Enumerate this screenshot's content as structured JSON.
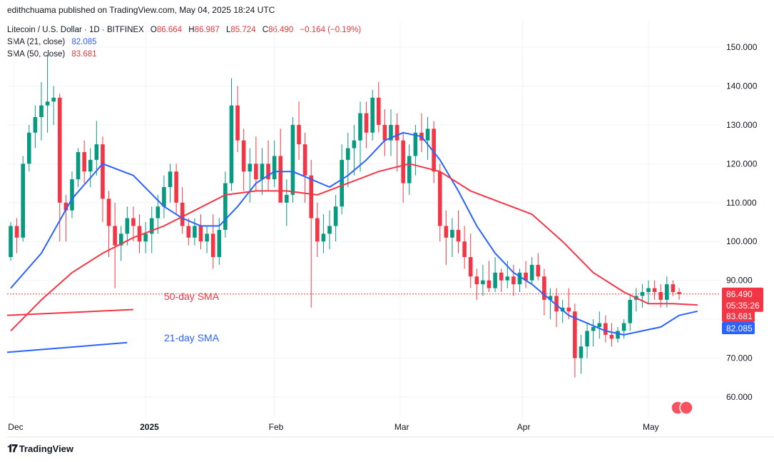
{
  "header": {
    "published_by": "edithchuama published on TradingView.com, May 04, 2025 18:24 UTC"
  },
  "legend": {
    "symbol": "Litecoin / U.S. Dollar · 1D · BITFINEX",
    "open_label": "O",
    "open": "86.664",
    "high_label": "H",
    "high": "86.987",
    "low_label": "L",
    "low": "85.724",
    "close_label": "C",
    "close": "86.490",
    "change": "−0.164 (−0.19%)",
    "sma21_label": "SMA (21, close)",
    "sma21_value": "82.085",
    "sma50_label": "SMA (50, close)",
    "sma50_value": "83.681"
  },
  "footer": {
    "logo_text": "TradingView"
  },
  "chart_data": {
    "type": "line",
    "title": "Litecoin / U.S. Dollar · 1D · BITFINEX",
    "y_axis_side": "right",
    "ylim": [
      55,
      157
    ],
    "y_ticks": [
      "150.000",
      "140.000",
      "130.000",
      "120.000",
      "110.000",
      "100.000",
      "90.000",
      "80.000",
      "70.000",
      "60.000"
    ],
    "x_ticks": [
      "Dec",
      "2025",
      "Feb",
      "Mar",
      "Apr",
      "May"
    ],
    "price_labels": [
      {
        "text": "86.490",
        "sub": "05:35:26",
        "value": 86.49,
        "color": "#f23645"
      },
      {
        "text": "83.681",
        "value": 83.681,
        "color": "#f23645"
      },
      {
        "text": "82.085",
        "value": 82.085,
        "color": "#2962ff"
      }
    ],
    "annotations": [
      {
        "text": "50-day SMA",
        "color": "#f23645"
      },
      {
        "text": "21-day SMA",
        "color": "#2962ff"
      }
    ],
    "colors": {
      "up": "#089981",
      "down": "#f23645",
      "sma21": "#2962ff",
      "sma50": "#f23645",
      "grid": "#f0f3fa"
    },
    "candles_ohlc": [
      [
        96,
        105,
        95,
        104
      ],
      [
        104,
        106,
        97,
        101
      ],
      [
        101,
        122,
        100,
        120
      ],
      [
        120,
        130,
        118,
        128
      ],
      [
        128,
        135,
        124,
        132
      ],
      [
        132,
        141,
        126,
        135
      ],
      [
        135,
        148,
        128,
        136
      ],
      [
        136,
        140,
        130,
        137
      ],
      [
        137,
        138,
        100,
        110
      ],
      [
        110,
        112,
        100,
        108
      ],
      [
        108,
        118,
        106,
        116
      ],
      [
        116,
        124,
        114,
        123
      ],
      [
        123,
        126,
        115,
        118
      ],
      [
        118,
        124,
        114,
        121
      ],
      [
        121,
        131,
        117,
        125
      ],
      [
        125,
        127,
        105,
        111
      ],
      [
        111,
        113,
        96,
        104
      ],
      [
        104,
        110,
        88,
        99
      ],
      [
        99,
        104,
        95,
        102
      ],
      [
        102,
        109,
        99,
        106
      ],
      [
        106,
        109,
        100,
        104
      ],
      [
        104,
        107,
        97,
        100
      ],
      [
        100,
        105,
        97,
        102
      ],
      [
        102,
        109,
        97,
        106
      ],
      [
        106,
        112,
        102,
        109
      ],
      [
        109,
        117,
        106,
        114
      ],
      [
        114,
        120,
        110,
        118
      ],
      [
        118,
        120,
        107,
        110
      ],
      [
        110,
        114,
        102,
        104
      ],
      [
        104,
        106,
        99,
        101
      ],
      [
        101,
        106,
        99,
        104
      ],
      [
        104,
        107,
        98,
        100
      ],
      [
        100,
        104,
        97,
        102
      ],
      [
        102,
        107,
        93,
        96
      ],
      [
        96,
        106,
        94,
        103
      ],
      [
        103,
        118,
        101,
        115
      ],
      [
        115,
        142,
        113,
        135
      ],
      [
        135,
        140,
        123,
        126
      ],
      [
        126,
        129,
        113,
        118
      ],
      [
        118,
        124,
        110,
        120
      ],
      [
        120,
        127,
        113,
        116
      ],
      [
        116,
        124,
        112,
        120
      ],
      [
        120,
        126,
        113,
        116
      ],
      [
        116,
        126,
        114,
        122
      ],
      [
        122,
        129,
        115,
        110
      ],
      [
        110,
        116,
        104,
        112
      ],
      [
        112,
        132,
        110,
        130
      ],
      [
        130,
        136,
        121,
        125
      ],
      [
        125,
        128,
        110,
        117
      ],
      [
        117,
        121,
        83,
        106
      ],
      [
        106,
        110,
        96,
        100
      ],
      [
        100,
        107,
        97,
        102
      ],
      [
        102,
        108,
        98,
        104
      ],
      [
        104,
        112,
        100,
        109
      ],
      [
        109,
        125,
        107,
        121
      ],
      [
        121,
        128,
        114,
        124
      ],
      [
        124,
        130,
        117,
        126
      ],
      [
        126,
        136,
        118,
        133
      ],
      [
        133,
        136,
        124,
        128
      ],
      [
        128,
        139,
        126,
        137
      ],
      [
        137,
        141,
        128,
        130
      ],
      [
        130,
        134,
        122,
        126
      ],
      [
        126,
        134,
        122,
        130
      ],
      [
        130,
        133,
        118,
        126
      ],
      [
        126,
        128,
        110,
        115
      ],
      [
        115,
        125,
        112,
        122
      ],
      [
        122,
        130,
        117,
        128
      ],
      [
        128,
        133,
        123,
        126
      ],
      [
        126,
        132,
        121,
        129
      ],
      [
        129,
        131,
        115,
        118
      ],
      [
        118,
        120,
        100,
        104
      ],
      [
        104,
        108,
        94,
        101
      ],
      [
        101,
        106,
        96,
        103
      ],
      [
        103,
        108,
        97,
        100
      ],
      [
        100,
        104,
        93,
        96
      ],
      [
        96,
        102,
        88,
        91
      ],
      [
        91,
        93,
        85,
        89
      ],
      [
        89,
        94,
        86,
        90
      ],
      [
        90,
        95,
        87,
        88
      ],
      [
        88,
        96,
        87,
        92
      ],
      [
        92,
        93,
        87,
        90
      ],
      [
        90,
        95,
        88,
        91
      ],
      [
        91,
        94,
        86,
        89
      ],
      [
        89,
        93,
        87,
        92
      ],
      [
        92,
        95,
        88,
        90
      ],
      [
        90,
        96,
        89,
        94
      ],
      [
        94,
        97,
        90,
        91
      ],
      [
        91,
        93,
        81,
        85
      ],
      [
        85,
        88,
        80,
        86
      ],
      [
        86,
        88,
        78,
        82
      ],
      [
        82,
        85,
        79,
        83
      ],
      [
        83,
        88,
        80,
        82
      ],
      [
        82,
        84,
        65,
        70
      ],
      [
        70,
        76,
        66,
        73
      ],
      [
        73,
        79,
        70,
        77
      ],
      [
        77,
        80,
        73,
        78
      ],
      [
        78,
        82,
        75,
        79
      ],
      [
        79,
        81,
        74,
        76
      ],
      [
        76,
        79,
        73,
        75
      ],
      [
        75,
        78,
        74,
        77
      ],
      [
        77,
        80,
        75,
        79
      ],
      [
        79,
        86,
        77,
        85
      ],
      [
        85,
        88,
        82,
        86
      ],
      [
        86,
        89,
        83,
        87
      ],
      [
        87,
        90,
        84,
        88
      ],
      [
        88,
        90,
        85,
        87
      ],
      [
        87,
        89,
        83,
        85
      ],
      [
        85,
        91,
        83,
        89
      ],
      [
        89,
        90,
        86,
        87
      ],
      [
        87,
        88,
        85,
        86.49
      ]
    ],
    "sma21": [
      [
        0,
        88
      ],
      [
        5,
        97
      ],
      [
        10,
        111
      ],
      [
        15,
        120
      ],
      [
        20,
        117
      ],
      [
        25,
        109
      ],
      [
        28,
        106
      ],
      [
        31,
        104
      ],
      [
        34,
        104
      ],
      [
        37,
        109
      ],
      [
        40,
        115
      ],
      [
        43,
        118
      ],
      [
        46,
        118
      ],
      [
        49,
        116
      ],
      [
        52,
        114
      ],
      [
        55,
        117
      ],
      [
        58,
        121
      ],
      [
        61,
        126
      ],
      [
        64,
        128
      ],
      [
        67,
        127
      ],
      [
        70,
        121
      ],
      [
        73,
        113
      ],
      [
        76,
        104
      ],
      [
        79,
        97
      ],
      [
        82,
        92
      ],
      [
        85,
        89
      ],
      [
        88,
        85
      ],
      [
        91,
        81
      ],
      [
        94,
        79
      ],
      [
        97,
        77
      ],
      [
        100,
        76
      ],
      [
        103,
        77
      ],
      [
        106,
        78
      ],
      [
        109,
        81
      ],
      [
        112,
        82.085
      ]
    ],
    "sma50": [
      [
        0,
        77
      ],
      [
        5,
        85
      ],
      [
        10,
        92
      ],
      [
        15,
        97
      ],
      [
        20,
        101
      ],
      [
        25,
        104
      ],
      [
        30,
        108
      ],
      [
        35,
        112
      ],
      [
        40,
        113
      ],
      [
        45,
        113
      ],
      [
        50,
        112
      ],
      [
        55,
        115
      ],
      [
        60,
        118
      ],
      [
        65,
        120
      ],
      [
        70,
        118
      ],
      [
        75,
        113
      ],
      [
        80,
        110
      ],
      [
        85,
        107
      ],
      [
        90,
        100
      ],
      [
        95,
        92
      ],
      [
        100,
        87
      ],
      [
        104,
        84
      ],
      [
        108,
        84
      ],
      [
        112,
        83.681
      ]
    ],
    "annotation_lines": [
      {
        "name": "50-day SMA guide",
        "x": [
          0,
          20
        ],
        "y": [
          81,
          82.5
        ],
        "color": "#f23645"
      },
      {
        "name": "21-day SMA guide",
        "x": [
          0,
          19
        ],
        "y": [
          71.5,
          74
        ],
        "color": "#2962ff"
      }
    ]
  }
}
